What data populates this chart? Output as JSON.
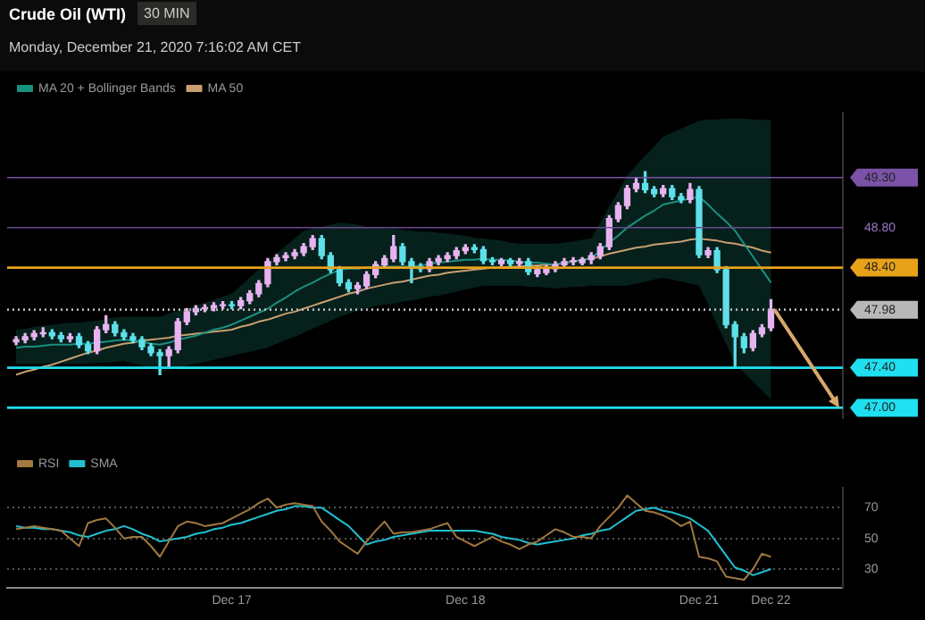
{
  "chart_data": [
    {
      "type": "candlestick",
      "title": "Crude Oil (WTI)",
      "subtitle": "Monday, December 21, 2020 7:16:02 AM CET",
      "annotations": [
        "30 MIN"
      ],
      "categories": [
        null,
        null,
        null,
        null,
        null,
        null,
        null,
        null,
        null,
        null,
        null,
        null,
        null,
        null,
        null,
        null,
        null,
        null,
        null,
        null,
        null,
        null,
        null,
        null,
        null,
        null,
        null,
        null,
        null,
        null,
        null,
        null,
        null,
        null,
        null,
        null,
        null,
        null,
        null,
        null,
        null,
        null,
        null,
        null,
        null,
        null,
        null,
        null,
        null,
        null,
        null,
        null,
        null,
        null,
        null,
        null,
        null,
        null,
        null,
        null,
        null,
        null,
        null,
        null,
        null,
        null,
        null,
        null,
        null,
        null,
        null,
        null,
        null,
        null,
        null,
        null,
        null,
        null,
        null,
        null,
        null,
        null,
        null,
        null,
        null
      ],
      "ohlc": [
        [
          47.66,
          47.71,
          47.63,
          47.68
        ],
        [
          47.68,
          47.74,
          47.65,
          47.71
        ],
        [
          47.71,
          47.77,
          47.68,
          47.74
        ],
        [
          47.74,
          47.8,
          47.71,
          47.75
        ],
        [
          47.75,
          47.78,
          47.69,
          47.72
        ],
        [
          47.72,
          47.75,
          47.66,
          47.69
        ],
        [
          47.69,
          47.74,
          47.66,
          47.71
        ],
        [
          47.71,
          47.74,
          47.6,
          47.63
        ],
        [
          47.63,
          47.66,
          47.54,
          47.57
        ],
        [
          47.57,
          47.81,
          47.54,
          47.78
        ],
        [
          47.78,
          47.92,
          47.75,
          47.83
        ],
        [
          47.83,
          47.86,
          47.72,
          47.75
        ],
        [
          47.75,
          47.78,
          47.68,
          47.71
        ],
        [
          47.71,
          47.74,
          47.65,
          47.68
        ],
        [
          47.68,
          47.71,
          47.58,
          47.61
        ],
        [
          47.61,
          47.64,
          47.52,
          47.55
        ],
        [
          47.55,
          47.58,
          47.33,
          47.52
        ],
        [
          47.52,
          47.61,
          47.4,
          47.58
        ],
        [
          47.58,
          47.89,
          47.55,
          47.86
        ],
        [
          47.86,
          47.99,
          47.83,
          47.96
        ],
        [
          47.96,
          48.02,
          47.93,
          47.99
        ],
        [
          47.99,
          48.03,
          47.96,
          48.0
        ],
        [
          48.0,
          48.05,
          47.97,
          48.02
        ],
        [
          48.02,
          48.06,
          47.99,
          48.03
        ],
        [
          48.03,
          48.06,
          47.99,
          48.02
        ],
        [
          48.02,
          48.1,
          47.99,
          48.07
        ],
        [
          48.07,
          48.17,
          48.04,
          48.14
        ],
        [
          48.14,
          48.27,
          48.11,
          48.24
        ],
        [
          48.24,
          48.49,
          48.21,
          48.46
        ],
        [
          48.46,
          48.53,
          48.43,
          48.5
        ],
        [
          48.5,
          48.55,
          48.47,
          48.52
        ],
        [
          48.52,
          48.58,
          48.49,
          48.55
        ],
        [
          48.55,
          48.64,
          48.52,
          48.61
        ],
        [
          48.61,
          48.72,
          48.58,
          48.69
        ],
        [
          48.69,
          48.72,
          48.49,
          48.52
        ],
        [
          48.52,
          48.55,
          48.35,
          48.38
        ],
        [
          48.38,
          48.41,
          48.22,
          48.25
        ],
        [
          48.25,
          48.28,
          48.16,
          48.19
        ],
        [
          48.19,
          48.25,
          48.14,
          48.22
        ],
        [
          48.22,
          48.36,
          48.19,
          48.33
        ],
        [
          48.33,
          48.46,
          48.3,
          48.43
        ],
        [
          48.43,
          48.52,
          48.4,
          48.49
        ],
        [
          48.49,
          48.72,
          48.46,
          48.61
        ],
        [
          48.61,
          48.64,
          48.43,
          48.46
        ],
        [
          48.46,
          48.49,
          48.25,
          48.41
        ],
        [
          48.41,
          48.44,
          48.36,
          48.39
        ],
        [
          48.39,
          48.49,
          48.36,
          48.46
        ],
        [
          48.46,
          48.52,
          48.43,
          48.49
        ],
        [
          48.49,
          48.55,
          48.46,
          48.52
        ],
        [
          48.52,
          48.6,
          48.49,
          48.57
        ],
        [
          48.57,
          48.63,
          48.54,
          48.6
        ],
        [
          48.6,
          48.63,
          48.55,
          48.58
        ],
        [
          48.58,
          48.61,
          48.44,
          48.47
        ],
        [
          48.47,
          48.5,
          48.43,
          48.46
        ],
        [
          48.44,
          48.49,
          48.42,
          48.47
        ],
        [
          48.47,
          48.49,
          48.41,
          48.44
        ],
        [
          48.44,
          48.49,
          48.41,
          48.46
        ],
        [
          48.46,
          48.49,
          48.33,
          48.36
        ],
        [
          48.34,
          48.41,
          48.31,
          48.38
        ],
        [
          48.35,
          48.42,
          48.33,
          48.39
        ],
        [
          48.39,
          48.46,
          48.36,
          48.43
        ],
        [
          48.43,
          48.49,
          48.4,
          48.46
        ],
        [
          48.46,
          48.5,
          48.43,
          48.47
        ],
        [
          48.45,
          48.5,
          48.43,
          48.48
        ],
        [
          48.48,
          48.55,
          48.44,
          48.52
        ],
        [
          48.52,
          48.64,
          48.49,
          48.61
        ],
        [
          48.61,
          48.92,
          48.58,
          48.89
        ],
        [
          48.89,
          49.05,
          48.86,
          49.02
        ],
        [
          49.02,
          49.22,
          48.99,
          49.19
        ],
        [
          49.19,
          49.3,
          49.16,
          49.24
        ],
        [
          49.24,
          49.36,
          49.15,
          49.18
        ],
        [
          49.18,
          49.21,
          49.11,
          49.14
        ],
        [
          49.14,
          49.22,
          49.11,
          49.19
        ],
        [
          49.19,
          49.22,
          49.08,
          49.11
        ],
        [
          49.11,
          49.14,
          49.05,
          49.08
        ],
        [
          49.08,
          49.24,
          49.05,
          49.18
        ],
        [
          49.18,
          49.21,
          48.5,
          48.53
        ],
        [
          48.53,
          48.6,
          48.5,
          48.57
        ],
        [
          48.57,
          48.6,
          48.35,
          48.38
        ],
        [
          48.38,
          48.41,
          47.8,
          47.83
        ],
        [
          47.83,
          47.86,
          47.41,
          47.71
        ],
        [
          47.71,
          47.74,
          47.55,
          47.6
        ],
        [
          47.6,
          47.77,
          47.57,
          47.74
        ],
        [
          47.74,
          47.83,
          47.71,
          47.8
        ],
        [
          47.8,
          48.08,
          47.77,
          47.98
        ]
      ],
      "colors": [
        "#e6b3f0",
        "#e6b3f0",
        "#e6b3f0",
        "#e6b3f0",
        "#5ee0ea",
        "#5ee0ea",
        "#e6b3f0",
        "#5ee0ea",
        "#5ee0ea",
        "#e6b3f0",
        "#e6b3f0",
        "#5ee0ea",
        "#5ee0ea",
        "#5ee0ea",
        "#5ee0ea",
        "#5ee0ea",
        "#5ee0ea",
        "#e6b3f0",
        "#e6b3f0",
        "#e6b3f0",
        "#e6b3f0",
        "#e6b3f0",
        "#e6b3f0",
        "#e6b3f0",
        "#5ee0ea",
        "#e6b3f0",
        "#e6b3f0",
        "#e6b3f0",
        "#e6b3f0",
        "#e6b3f0",
        "#e6b3f0",
        "#e6b3f0",
        "#e6b3f0",
        "#e6b3f0",
        "#5ee0ea",
        "#5ee0ea",
        "#5ee0ea",
        "#5ee0ea",
        "#e6b3f0",
        "#e6b3f0",
        "#e6b3f0",
        "#e6b3f0",
        "#e6b3f0",
        "#5ee0ea",
        "#5ee0ea",
        "#5ee0ea",
        "#e6b3f0",
        "#e6b3f0",
        "#e6b3f0",
        "#e6b3f0",
        "#e6b3f0",
        "#5ee0ea",
        "#5ee0ea",
        "#5ee0ea",
        "#e6b3f0",
        "#5ee0ea",
        "#e6b3f0",
        "#5ee0ea",
        "#e6b3f0",
        "#e6b3f0",
        "#e6b3f0",
        "#e6b3f0",
        "#e6b3f0",
        "#e6b3f0",
        "#e6b3f0",
        "#e6b3f0",
        "#e6b3f0",
        "#e6b3f0",
        "#e6b3f0",
        "#e6b3f0",
        "#5ee0ea",
        "#5ee0ea",
        "#e6b3f0",
        "#5ee0ea",
        "#5ee0ea",
        "#e6b3f0",
        "#5ee0ea",
        "#e6b3f0",
        "#5ee0ea",
        "#5ee0ea",
        "#5ee0ea",
        "#5ee0ea",
        "#e6b3f0",
        "#e6b3f0",
        "#e6b3f0"
      ],
      "series": [
        {
          "type": "line",
          "name": "MA 20 + Bollinger Bands",
          "color": "#1a9080",
          "values": [
            47.6,
            47.61,
            47.61,
            47.62,
            47.63,
            47.63,
            47.63,
            47.64,
            47.64,
            47.65,
            47.66,
            47.67,
            47.68,
            47.67,
            47.66,
            47.64,
            47.63,
            47.65,
            47.68,
            47.7,
            47.72,
            47.75,
            47.78,
            47.8,
            47.83,
            47.87,
            47.91,
            47.95,
            47.99,
            48.05,
            48.1,
            48.16,
            48.21,
            48.25,
            48.3,
            48.34,
            48.38,
            48.39,
            48.39,
            48.4,
            48.41,
            48.41,
            48.41,
            48.41,
            48.41,
            48.42,
            48.44,
            48.45,
            48.46,
            48.47,
            48.48,
            48.48,
            48.49,
            48.48,
            48.48,
            48.47,
            48.46,
            48.45,
            48.45,
            48.44,
            48.43,
            48.45,
            48.46,
            48.48,
            48.49,
            48.57,
            48.65,
            48.72,
            48.8,
            48.86,
            48.92,
            48.97,
            49.03,
            49.05,
            49.07,
            49.09,
            49.11,
            49.03,
            48.94,
            48.86,
            48.77,
            48.64,
            48.51,
            48.38,
            48.25
          ],
          "upper": [
            47.78,
            47.79,
            47.81,
            47.82,
            47.83,
            47.84,
            47.85,
            47.85,
            47.86,
            47.87,
            47.89,
            47.9,
            47.91,
            47.91,
            47.91,
            47.91,
            47.91,
            47.94,
            47.97,
            47.99,
            48.02,
            48.05,
            48.08,
            48.11,
            48.14,
            48.22,
            48.3,
            48.38,
            48.46,
            48.54,
            48.62,
            48.69,
            48.77,
            48.79,
            48.81,
            48.83,
            48.85,
            48.84,
            48.83,
            48.81,
            48.8,
            48.79,
            48.79,
            48.78,
            48.77,
            48.76,
            48.76,
            48.75,
            48.74,
            48.73,
            48.72,
            48.7,
            48.69,
            48.68,
            48.67,
            48.65,
            48.64,
            48.64,
            48.64,
            48.64,
            48.64,
            48.65,
            48.66,
            48.68,
            48.69,
            48.85,
            49.01,
            49.16,
            49.32,
            49.42,
            49.52,
            49.61,
            49.71,
            49.75,
            49.79,
            49.83,
            49.87,
            49.88,
            49.88,
            49.89,
            49.89,
            49.89,
            49.88,
            49.88,
            49.87
          ],
          "lower": [
            47.44,
            47.44,
            47.44,
            47.44,
            47.44,
            47.44,
            47.44,
            47.44,
            47.44,
            47.45,
            47.45,
            47.46,
            47.47,
            47.44,
            47.42,
            47.39,
            47.36,
            47.38,
            47.4,
            47.42,
            47.44,
            47.46,
            47.48,
            47.5,
            47.52,
            47.54,
            47.56,
            47.58,
            47.6,
            47.64,
            47.68,
            47.71,
            47.75,
            47.79,
            47.83,
            47.87,
            47.91,
            47.94,
            47.97,
            47.99,
            48.02,
            48.03,
            48.04,
            48.06,
            48.07,
            48.09,
            48.11,
            48.12,
            48.14,
            48.16,
            48.18,
            48.2,
            48.22,
            48.22,
            48.22,
            48.22,
            48.22,
            48.21,
            48.21,
            48.2,
            48.19,
            48.2,
            48.21,
            48.21,
            48.22,
            48.22,
            48.22,
            48.22,
            48.22,
            48.24,
            48.26,
            48.28,
            48.3,
            48.28,
            48.26,
            48.24,
            48.22,
            48.03,
            47.83,
            47.64,
            47.44,
            47.35,
            47.26,
            47.17,
            47.08
          ]
        },
        {
          "type": "line",
          "name": "MA 50",
          "color": "#c8a070",
          "values": [
            47.33,
            47.36,
            47.38,
            47.41,
            47.43,
            47.46,
            47.49,
            47.52,
            47.55,
            47.57,
            47.6,
            47.62,
            47.64,
            47.65,
            47.67,
            47.68,
            47.69,
            47.7,
            47.72,
            47.73,
            47.74,
            47.75,
            47.76,
            47.77,
            47.78,
            47.81,
            47.83,
            47.86,
            47.88,
            47.91,
            47.94,
            47.96,
            47.99,
            48.02,
            48.05,
            48.08,
            48.11,
            48.14,
            48.16,
            48.19,
            48.21,
            48.23,
            48.25,
            48.26,
            48.28,
            48.3,
            48.32,
            48.33,
            48.35,
            48.36,
            48.37,
            48.38,
            48.39,
            48.4,
            48.4,
            48.41,
            48.41,
            48.42,
            48.42,
            48.43,
            48.43,
            48.45,
            48.46,
            48.48,
            48.49,
            48.51,
            48.54,
            48.56,
            48.58,
            48.6,
            48.61,
            48.63,
            48.64,
            48.65,
            48.66,
            48.68,
            48.69,
            48.68,
            48.67,
            48.65,
            48.64,
            48.62,
            48.6,
            48.57,
            48.55
          ]
        }
      ],
      "ref_lines": [
        {
          "axis": "y",
          "value": 49.3,
          "color": "#7b52a8"
        },
        {
          "axis": "y",
          "value": 48.8,
          "color": "#6a4a90"
        },
        {
          "axis": "y",
          "value": 48.4,
          "color": "#e8a21a"
        },
        {
          "axis": "y",
          "value": 47.98,
          "color": "#b8b8b8",
          "line_style": "dotted"
        },
        {
          "axis": "y",
          "value": 47.4,
          "color": "#1fe0f0"
        },
        {
          "axis": "y",
          "value": 47.0,
          "color": "#1fe0f0"
        }
      ],
      "ylim": [
        46.9,
        49.95
      ],
      "yticks": [
        {
          "value": 49.3,
          "label": "49.30"
        },
        {
          "value": 48.8,
          "label": "48.80"
        },
        {
          "value": 48.4,
          "label": "48.40"
        },
        {
          "value": 47.98,
          "label": "47.98"
        },
        {
          "value": 47.4,
          "label": "47.40"
        },
        {
          "value": 47.0,
          "label": "47.00"
        }
      ],
      "tick_labels": "y",
      "legend": "top left"
    },
    {
      "type": "line",
      "categories": [
        null,
        null,
        null,
        null,
        null,
        null,
        null,
        null,
        null,
        null,
        null,
        null,
        null,
        null,
        null,
        null,
        null,
        null,
        null,
        null,
        null,
        null,
        null,
        null,
        "Dec 17",
        null,
        null,
        null,
        null,
        null,
        null,
        null,
        null,
        null,
        null,
        null,
        null,
        null,
        null,
        null,
        null,
        null,
        null,
        null,
        null,
        null,
        null,
        null,
        null,
        null,
        "Dec 18",
        null,
        null,
        null,
        null,
        null,
        null,
        null,
        null,
        null,
        null,
        null,
        null,
        null,
        null,
        null,
        null,
        null,
        null,
        null,
        null,
        null,
        null,
        null,
        null,
        null,
        "Dec 21",
        null,
        null,
        null,
        null,
        null,
        null,
        null,
        "Dec 22"
      ],
      "series": [
        {
          "name": "RSI",
          "color": "#a07840",
          "values": [
            56,
            57,
            58,
            57,
            56,
            55,
            50,
            45,
            60,
            62,
            63,
            57,
            50,
            51,
            51,
            45,
            38,
            48,
            58,
            61,
            60,
            58,
            59,
            60,
            63,
            66,
            69,
            73,
            76,
            70,
            72,
            73,
            72,
            71,
            61,
            55,
            48,
            44,
            40,
            48,
            55,
            61,
            53,
            54,
            54,
            55,
            56,
            58,
            60,
            51,
            48,
            45,
            48,
            51,
            48,
            46,
            43,
            46,
            48,
            52,
            56,
            54,
            51,
            51,
            50,
            58,
            64,
            70,
            78,
            73,
            68,
            67,
            65,
            62,
            58,
            61,
            38,
            37,
            35,
            25,
            24,
            23,
            30,
            40,
            38
          ]
        },
        {
          "name": "SMA",
          "color": "#20c0d0",
          "values": [
            58,
            57,
            57,
            56,
            56,
            55,
            54,
            52,
            51,
            53,
            55,
            56,
            58,
            56,
            53,
            51,
            48,
            49,
            50,
            51,
            53,
            54,
            56,
            57,
            59,
            60,
            62,
            64,
            66,
            68,
            69,
            71,
            71,
            70,
            70,
            66,
            62,
            58,
            52,
            46,
            48,
            49,
            51,
            52,
            53,
            54,
            55,
            55,
            55,
            55,
            55,
            55,
            54,
            53,
            51,
            50,
            49,
            47,
            46,
            47,
            48,
            49,
            50,
            52,
            53,
            55,
            56,
            60,
            64,
            68,
            69,
            70,
            68,
            67,
            65,
            63,
            59,
            55,
            47,
            39,
            31,
            29,
            26,
            28,
            30
          ]
        }
      ],
      "ylim": [
        18,
        83
      ],
      "yticks": [
        30,
        50,
        70
      ],
      "grid": "y",
      "legend": "top left"
    }
  ]
}
